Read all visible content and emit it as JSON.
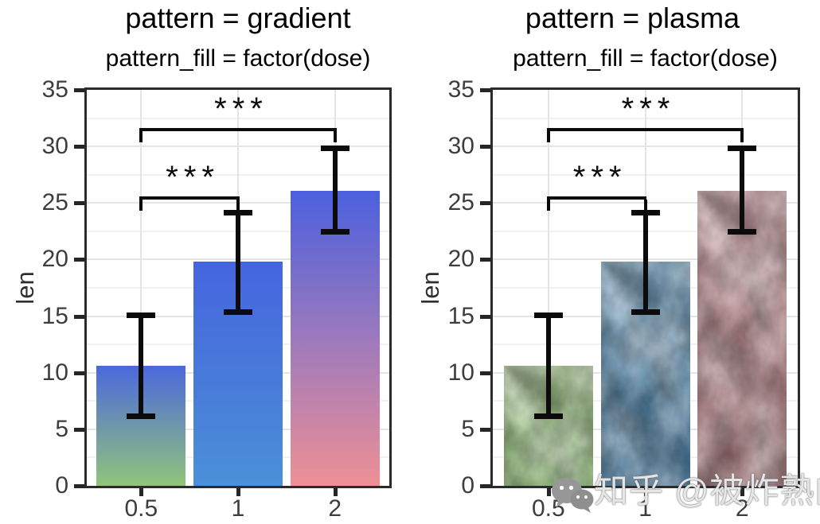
{
  "watermark": {
    "text": "知乎 @被炸熟的虾",
    "icon": "wechat-icon",
    "icon_color": "#979797",
    "text_color": "#fafafa"
  },
  "style_colors": {
    "panel_border": "#2b2b2b",
    "grid_major": "#e4e4e4",
    "grid_minor": "#f1f1f1",
    "axis_text": "#3d3d3d",
    "error_bar": "#0b0b0b",
    "background": "#ffffff"
  },
  "chart_data": [
    {
      "type": "bar",
      "title": "pattern = gradient",
      "subtitle": "pattern_fill = factor(dose)",
      "xlabel": "",
      "ylabel": "len",
      "categories": [
        "0.5",
        "1",
        "2"
      ],
      "values": [
        10.6,
        19.8,
        26.1
      ],
      "error_low": [
        6.1,
        15.3,
        22.4
      ],
      "error_high": [
        15.1,
        24.2,
        29.9
      ],
      "ylim": [
        0,
        35
      ],
      "yticks": [
        0,
        5,
        10,
        15,
        20,
        25,
        30,
        35
      ],
      "grid": true,
      "legend": false,
      "pattern": "gradient",
      "bar_fill_top": [
        "#4b68dc",
        "#4565de",
        "#4a60de"
      ],
      "bar_fill_mid": [
        "#6e96ab",
        "#4879d9",
        "#9c79bc"
      ],
      "bar_fill_bottom": [
        "#8fc57a",
        "#4b90d8",
        "#ee9095"
      ],
      "significance": [
        {
          "from": 0,
          "to": 1,
          "y": 25.6,
          "label": "***"
        },
        {
          "from": 0,
          "to": 2,
          "y": 31.6,
          "label": "***"
        }
      ]
    },
    {
      "type": "bar",
      "title": "pattern = plasma",
      "subtitle": "pattern_fill = factor(dose)",
      "xlabel": "",
      "ylabel": "len",
      "categories": [
        "0.5",
        "1",
        "2"
      ],
      "values": [
        10.6,
        19.8,
        26.1
      ],
      "error_low": [
        6.1,
        15.3,
        22.4
      ],
      "error_high": [
        15.1,
        24.2,
        29.9
      ],
      "ylim": [
        0,
        35
      ],
      "yticks": [
        0,
        5,
        10,
        15,
        20,
        25,
        30,
        35
      ],
      "grid": true,
      "legend": false,
      "pattern": "plasma",
      "bar_fill_top": [
        "#aec899",
        "#7fa7c3",
        "#c8a2a6"
      ],
      "bar_fill_mid": [
        "#93b87d",
        "#54809f",
        "#a87e81"
      ],
      "bar_fill_bottom": [
        "#7ca266",
        "#3f6b8c",
        "#966b6e"
      ],
      "significance": [
        {
          "from": 0,
          "to": 1,
          "y": 25.6,
          "label": "***"
        },
        {
          "from": 0,
          "to": 2,
          "y": 31.6,
          "label": "***"
        }
      ]
    }
  ]
}
